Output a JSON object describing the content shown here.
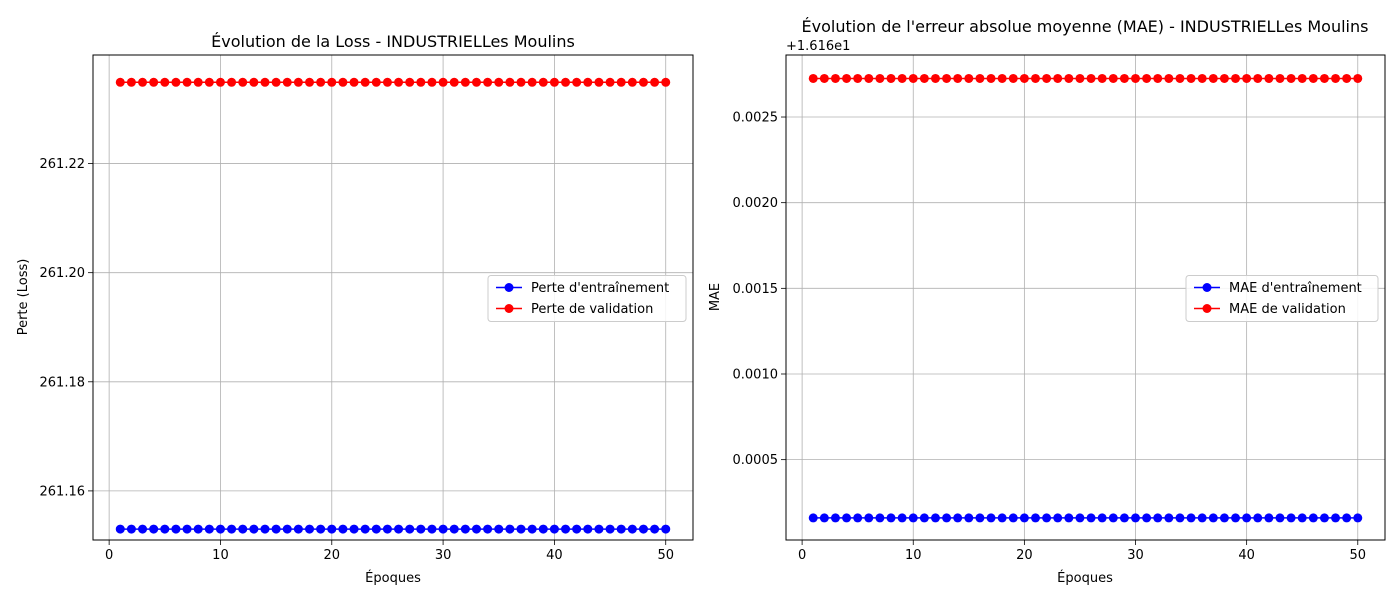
{
  "chart_data": [
    {
      "type": "line",
      "title": "Évolution de la Loss - INDUSTRIELLes Moulins",
      "xlabel": "Époques",
      "ylabel": "Perte (Loss)",
      "x_ticks": [
        "0",
        "10",
        "20",
        "30",
        "40",
        "50"
      ],
      "y_ticks": [
        "261.16",
        "261.18",
        "261.20",
        "261.22"
      ],
      "y_tick_values": [
        261.16,
        261.18,
        261.2,
        261.22
      ],
      "offset_text": "",
      "xlim": [
        -1.45,
        52.45
      ],
      "ylim": [
        261.151,
        261.2399
      ],
      "grid": true,
      "legend_position": "center-right",
      "x_start": 1,
      "x_end": 50,
      "series": [
        {
          "name": "Perte d'entraînement",
          "color": "#0000ff",
          "value": 261.153
        },
        {
          "name": "Perte de validation",
          "color": "#ff0000",
          "value": 261.2349
        }
      ]
    },
    {
      "type": "line",
      "title": "Évolution de l'erreur absolue moyenne (MAE) - INDUSTRIELLes Moulins",
      "xlabel": "Époques",
      "ylabel": "MAE",
      "x_ticks": [
        "0",
        "10",
        "20",
        "30",
        "40",
        "50"
      ],
      "y_ticks": [
        "0.0005",
        "0.0010",
        "0.0015",
        "0.0020",
        "0.0025"
      ],
      "y_tick_values": [
        0.0005,
        0.001,
        0.0015,
        0.002,
        0.0025
      ],
      "offset_text": "+1.616e1",
      "xlim": [
        -1.45,
        52.45
      ],
      "ylim": [
        3.1e-05,
        0.002862
      ],
      "grid": true,
      "legend_position": "center-right",
      "x_start": 1,
      "x_end": 50,
      "series": [
        {
          "name": "MAE d'entraînement",
          "color": "#0000ff",
          "value": 0.00016
        },
        {
          "name": "MAE de validation",
          "color": "#ff0000",
          "value": 0.002725
        }
      ]
    }
  ]
}
